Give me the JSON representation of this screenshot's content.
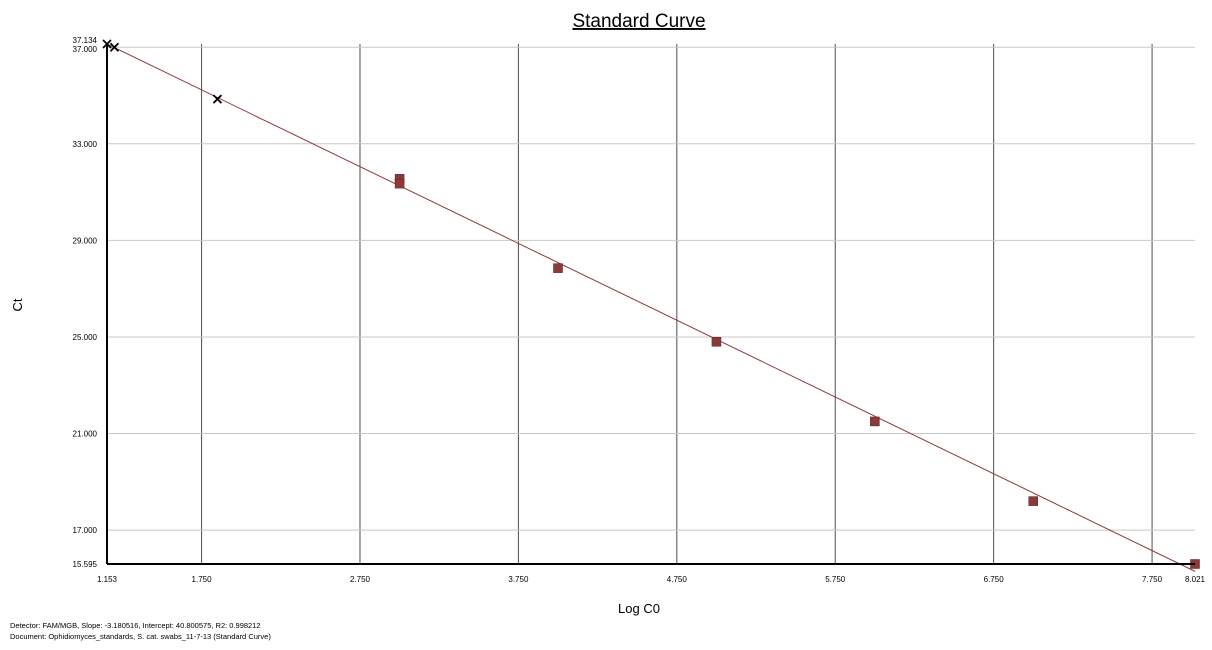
{
  "chart_data": {
    "type": "scatter",
    "title": "Standard Curve",
    "xlabel": "Log C0",
    "ylabel": "Ct",
    "xlim": [
      1.153,
      8.021
    ],
    "ylim": [
      15.595,
      37.134
    ],
    "grid": true,
    "x_ticks": [
      "1.153",
      "1.750",
      "2.750",
      "3.750",
      "4.750",
      "5.750",
      "6.750",
      "7.750",
      "8.021"
    ],
    "y_ticks": [
      "15.595",
      "17.000",
      "21.000",
      "25.000",
      "29.000",
      "33.000",
      "37.000",
      "37.134"
    ],
    "fit_line": {
      "slope": -3.180516,
      "intercept": 40.800575,
      "x_range": [
        1.153,
        8.021
      ],
      "color": "#8b3a3a"
    },
    "series": [
      {
        "marker": "x",
        "color": "#000000",
        "points": [
          {
            "x": 1.153,
            "y": 37.134
          },
          {
            "x": 1.2,
            "y": 37.0
          },
          {
            "x": 1.85,
            "y": 34.85
          }
        ]
      },
      {
        "marker": "square",
        "color": "#8b3a3a",
        "points": [
          {
            "x": 3.0,
            "y": 31.55
          },
          {
            "x": 3.0,
            "y": 31.35
          },
          {
            "x": 4.0,
            "y": 27.85
          },
          {
            "x": 5.0,
            "y": 24.8
          },
          {
            "x": 6.0,
            "y": 21.5
          },
          {
            "x": 7.0,
            "y": 18.2
          },
          {
            "x": 8.021,
            "y": 15.595
          }
        ]
      }
    ]
  },
  "footer": {
    "detector": "Detector: FAM/MGB, Slope: -3.180516, Intercept: 40.800575, R2: 0.998212",
    "document": "Document: Ophidiomyces_standards, S. cat. swabs_11-7-13 (Standard Curve)"
  }
}
